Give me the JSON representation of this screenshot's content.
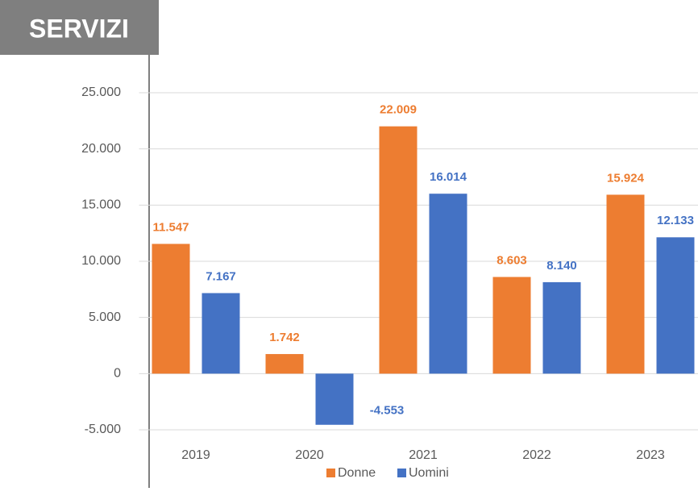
{
  "chart_data": {
    "type": "bar",
    "title": "SERVIZI",
    "categories": [
      "2019",
      "2020",
      "2021",
      "2022",
      "2023"
    ],
    "series": [
      {
        "name": "Donne",
        "color": "#ED7D31",
        "values": [
          11547,
          1742,
          22009,
          8603,
          15924
        ],
        "value_labels": [
          "11.547",
          "1.742",
          "22.009",
          "8.603",
          "15.924"
        ]
      },
      {
        "name": "Uomini",
        "color": "#4472C4",
        "values": [
          7167,
          -4553,
          16014,
          8140,
          12133
        ],
        "value_labels": [
          "7.167",
          "-4.553",
          "16.014",
          "8.140",
          "12.133"
        ]
      }
    ],
    "ylim": [
      -5000,
      25000
    ],
    "yticks": [
      {
        "value": -5000,
        "label": "-5.000"
      },
      0,
      {
        "value": 5000,
        "label": "5.000"
      },
      {
        "value": 10000,
        "label": "10.000"
      },
      {
        "value": 15000,
        "label": "15.000"
      },
      {
        "value": 20000,
        "label": "20.000"
      },
      {
        "value": 25000,
        "label": "25.000"
      }
    ],
    "grid": true,
    "legend": "bottom"
  }
}
